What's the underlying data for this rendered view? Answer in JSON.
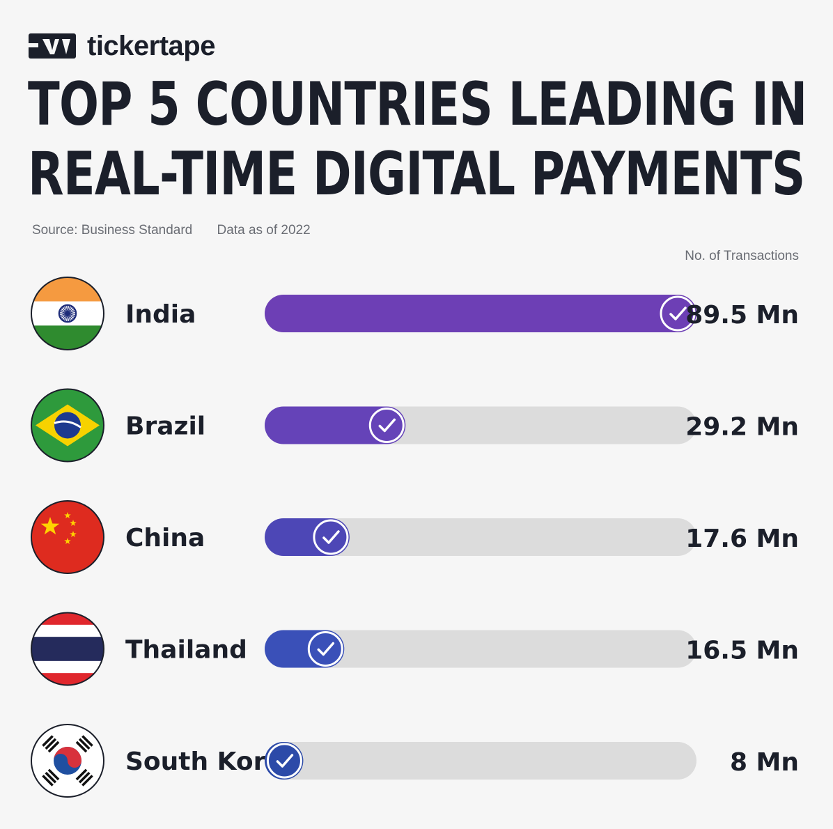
{
  "brand": {
    "name": "tickertape"
  },
  "header": {
    "title_lines": [
      "TOP 5 COUNTRIES LEADING IN",
      "REAL-TIME DIGITAL PAYMENTS"
    ],
    "source": "Source: Business Standard",
    "data_as_of": "Data as of 2022"
  },
  "chart_data": {
    "type": "bar",
    "orientation": "horizontal",
    "title": "TOP 5 COUNTRIES LEADING IN REAL-TIME DIGITAL PAYMENTS",
    "value_header": "No. of Transactions",
    "unit": "Mn",
    "xlim": [
      0,
      89.5
    ],
    "grid": false,
    "categories": [
      "India",
      "Brazil",
      "China",
      "Thailand",
      "South Korea"
    ],
    "values": [
      89.5,
      29.2,
      17.6,
      16.5,
      8
    ],
    "value_labels": [
      "89.5 Mn",
      "29.2 Mn",
      "17.6 Mn",
      "16.5 Mn",
      "8 Mn"
    ],
    "bar_colors": [
      "#6d3fb5",
      "#6543b8",
      "#4d47b6",
      "#3a50b8",
      "#2c4aa8"
    ],
    "track_color": "#dcdcdc",
    "flags": [
      "india-flag-icon",
      "brazil-flag-icon",
      "china-flag-icon",
      "thailand-flag-icon",
      "south-korea-flag-icon"
    ]
  }
}
